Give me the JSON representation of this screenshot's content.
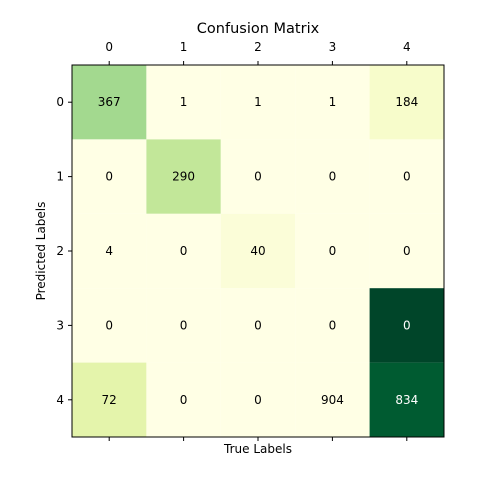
{
  "chart_data": {
    "type": "heatmap",
    "title": "Confusion Matrix",
    "xlabel": "True Labels",
    "ylabel": "Predicted Labels",
    "x_categories": [
      "0",
      "1",
      "2",
      "3",
      "4"
    ],
    "y_categories": [
      "0",
      "1",
      "2",
      "3",
      "4"
    ],
    "x_axis_position": "top",
    "colormap": "YlGn",
    "cells": [
      {
        "row": 0,
        "col": 0,
        "value": 367,
        "color": "#a3d98f"
      },
      {
        "row": 0,
        "col": 1,
        "value": 1,
        "color": "#ffffe5"
      },
      {
        "row": 0,
        "col": 2,
        "value": 1,
        "color": "#ffffe5"
      },
      {
        "row": 0,
        "col": 3,
        "value": 1,
        "color": "#ffffe5"
      },
      {
        "row": 0,
        "col": 4,
        "value": 184,
        "color": "#f7fccb"
      },
      {
        "row": 1,
        "col": 0,
        "value": 0,
        "color": "#ffffe5"
      },
      {
        "row": 1,
        "col": 1,
        "value": 290,
        "color": "#c2e799"
      },
      {
        "row": 1,
        "col": 2,
        "value": 0,
        "color": "#ffffe5"
      },
      {
        "row": 1,
        "col": 3,
        "value": 0,
        "color": "#ffffe5"
      },
      {
        "row": 1,
        "col": 4,
        "value": 0,
        "color": "#ffffe5"
      },
      {
        "row": 2,
        "col": 0,
        "value": 4,
        "color": "#ffffe5"
      },
      {
        "row": 2,
        "col": 1,
        "value": 0,
        "color": "#ffffe5"
      },
      {
        "row": 2,
        "col": 2,
        "value": 40,
        "color": "#fbfdd8"
      },
      {
        "row": 2,
        "col": 3,
        "value": 0,
        "color": "#ffffe5"
      },
      {
        "row": 2,
        "col": 4,
        "value": 0,
        "color": "#ffffe5"
      },
      {
        "row": 3,
        "col": 0,
        "value": 0,
        "color": "#ffffe5"
      },
      {
        "row": 3,
        "col": 1,
        "value": 0,
        "color": "#ffffe5"
      },
      {
        "row": 3,
        "col": 2,
        "value": 0,
        "color": "#ffffe5"
      },
      {
        "row": 3,
        "col": 3,
        "value": 0,
        "color": "#ffffe5"
      },
      {
        "row": 3,
        "col": 4,
        "value": 0,
        "color": "#004529"
      },
      {
        "row": 4,
        "col": 0,
        "value": 72,
        "color": "#e4f4ab"
      },
      {
        "row": 4,
        "col": 1,
        "value": 0,
        "color": "#ffffe5"
      },
      {
        "row": 4,
        "col": 2,
        "value": 0,
        "color": "#ffffe5"
      },
      {
        "row": 4,
        "col": 3,
        "value": 904,
        "color": "#ffffe5"
      },
      {
        "row": 4,
        "col": 4,
        "value": 834,
        "color": "#005b31"
      }
    ]
  }
}
